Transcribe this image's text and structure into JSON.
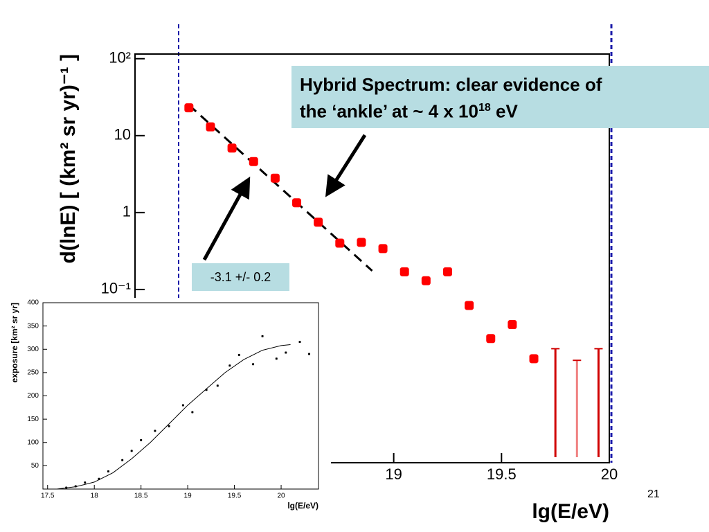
{
  "chart_data": [
    {
      "type": "scatter",
      "log_y": true,
      "x_label": "lg(E/eV)",
      "y_label": "d(lnE) [ (km² sr yr)⁻¹ ]",
      "xlim": [
        17.8,
        20
      ],
      "ylim": [
        0.00056,
        115
      ],
      "xticks": [
        19,
        19.5,
        20
      ],
      "yticks": [
        {
          "value": 100,
          "label": "10²"
        },
        10,
        1,
        {
          "value": 0.1,
          "label": "10⁻¹"
        }
      ],
      "color": "#ff0000",
      "x": [
        18.05,
        18.15,
        18.25,
        18.35,
        18.45,
        18.55,
        18.65,
        18.75,
        18.85,
        18.95,
        19.05,
        19.15,
        19.25,
        19.35,
        19.45,
        19.55,
        19.65
      ],
      "values": [
        23,
        13,
        6.9,
        4.6,
        2.8,
        1.34,
        0.75,
        0.4,
        0.41,
        0.34,
        0.17,
        0.13,
        0.17,
        0.062,
        0.023,
        0.035,
        0.0126
      ],
      "upper_limits": {
        "x": [
          19.75,
          19.85,
          19.95
        ],
        "values": [
          0.017,
          0.012,
          0.017
        ]
      },
      "fit_line": {
        "x": [
          18.05,
          18.9
        ],
        "values": [
          25,
          0.175
        ]
      }
    },
    {
      "type": "scatter",
      "x_label": "lg(E/eV)",
      "y_label": "exposure [km² sr yr]",
      "xlim": [
        17.45,
        20.4
      ],
      "ylim": [
        0,
        400
      ],
      "xticks": [
        17.5,
        18,
        18.5,
        19,
        19.5,
        20
      ],
      "yticks": [
        50,
        100,
        150,
        200,
        250,
        300,
        350,
        400
      ],
      "color": "#000000",
      "x": [
        17.7,
        17.8,
        17.9,
        18.05,
        18.15,
        18.3,
        18.4,
        18.5,
        18.65,
        18.8,
        18.95,
        19.05,
        19.2,
        19.32,
        19.45,
        19.55,
        19.7,
        19.8,
        19.95,
        20.05,
        20.2,
        20.3
      ],
      "values": [
        3,
        6,
        14,
        22,
        38,
        62,
        82,
        105,
        125,
        135,
        180,
        165,
        213,
        222,
        265,
        288,
        268,
        328,
        280,
        293,
        316,
        290
      ],
      "fit_curve": {
        "x": [
          17.6,
          17.8,
          18,
          18.2,
          18.4,
          18.6,
          18.8,
          19,
          19.2,
          19.4,
          19.6,
          19.8,
          20,
          20.1
        ],
        "values": [
          0,
          5,
          15,
          35,
          65,
          100,
          140,
          180,
          215,
          250,
          278,
          298,
          308,
          310
        ]
      }
    }
  ],
  "annotations": {
    "box_line1": "Hybrid Spectrum: clear evidence of",
    "box_line2": "the ‘ankle’ at ~ 4 x 10",
    "box_sup": "18",
    "box_end": " eV",
    "slope": "-3.1 +/- 0.2"
  },
  "page_number": "21"
}
